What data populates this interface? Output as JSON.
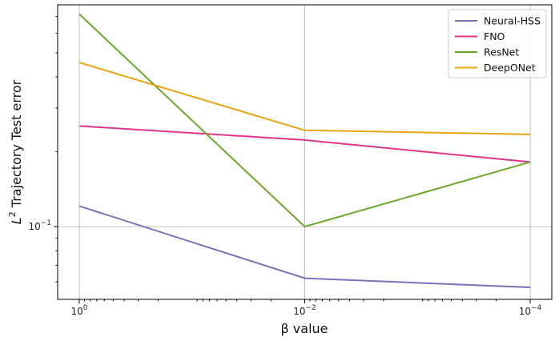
{
  "chart_data": {
    "type": "line",
    "xlabel": "β value",
    "ylabel_symbol": "L",
    "ylabel_exp": "2",
    "ylabel_rest": " Trajectory Test error",
    "x": [
      1,
      0.01,
      0.0001
    ],
    "x_scale": "log-reversed",
    "x_ticks": [
      {
        "value": 1,
        "base": "10",
        "exp": "0"
      },
      {
        "value": 0.01,
        "base": "10",
        "exp": "−2"
      },
      {
        "value": 0.0001,
        "base": "10",
        "exp": "−4"
      }
    ],
    "y_scale": "log",
    "ylim": [
      0.051,
      0.78
    ],
    "y_ticks": [
      {
        "value": 0.1,
        "base": "10",
        "exp": "−1"
      }
    ],
    "grid": true,
    "legend_position": "top-right",
    "series": [
      {
        "name": "Neural-HSS",
        "color": "#7b6fb8",
        "values": [
          0.121,
          0.062,
          0.057
        ]
      },
      {
        "name": "FNO",
        "color": "#e0348a",
        "values": [
          0.254,
          0.223,
          0.182
        ]
      },
      {
        "name": "ResNet",
        "color": "#6aa82a",
        "values": [
          0.715,
          0.1,
          0.182
        ]
      },
      {
        "name": "DeepONet",
        "color": "#e5a512",
        "values": [
          0.457,
          0.244,
          0.235
        ]
      }
    ]
  }
}
